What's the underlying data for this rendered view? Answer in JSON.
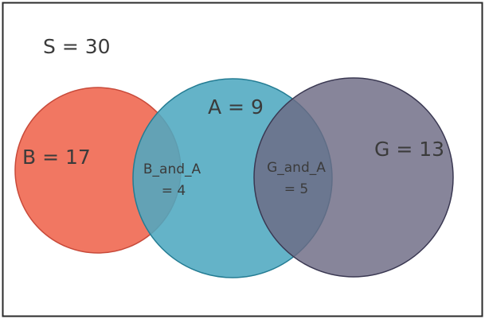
{
  "diagram": {
    "type": "venn",
    "universe": {
      "label": "S = 30"
    },
    "sets": [
      {
        "id": "B",
        "label": "B = 17",
        "fill": "#f0705a",
        "stroke": "#c84a3a"
      },
      {
        "id": "A",
        "label": "A = 9",
        "fill": "#4fa9c0",
        "stroke": "#247c93"
      },
      {
        "id": "G",
        "label": "G =  13",
        "fill": "#6c6a84",
        "stroke": "#3a3852"
      }
    ],
    "intersections": [
      {
        "id": "B_and_A",
        "line1": "B_and_A",
        "line2": "=  4"
      },
      {
        "id": "G_and_A",
        "line1": "G_and_A",
        "line2": "= 5"
      }
    ],
    "colors": {
      "background": "#ffffff",
      "frame": "#2b2b2b",
      "text": "#3b3b3b"
    }
  }
}
